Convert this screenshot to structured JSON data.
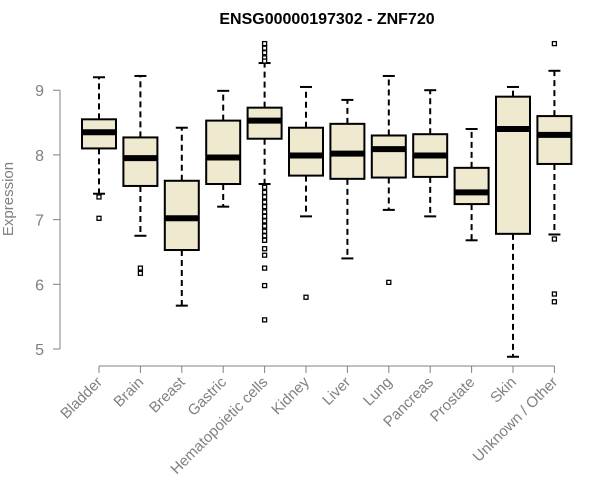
{
  "chart_data": {
    "type": "box",
    "title": "ENSG00000197302 - ZNF720",
    "ylabel": "Expression",
    "xlabel": "",
    "ylim": [
      4.8,
      9.8
    ],
    "yticks": [
      5,
      6,
      7,
      8,
      9
    ],
    "box_fill": "#efe9cf",
    "line_color": "#000000",
    "axis_color": "#808080",
    "categories": [
      "Bladder",
      "Brain",
      "Breast",
      "Gastric",
      "Hematopoietic cells",
      "Kidney",
      "Liver",
      "Lung",
      "Pancreas",
      "Prostate",
      "Skin",
      "Unknown / Other"
    ],
    "boxes": [
      {
        "category": "Bladder",
        "whisker_low": 7.4,
        "q1": 8.1,
        "median": 8.35,
        "q3": 8.55,
        "whisker_high": 9.2,
        "outliers": [
          7.35,
          7.02
        ]
      },
      {
        "category": "Brain",
        "whisker_low": 6.75,
        "q1": 7.52,
        "median": 7.95,
        "q3": 8.27,
        "whisker_high": 9.22,
        "outliers": [
          6.25,
          6.17
        ]
      },
      {
        "category": "Breast",
        "whisker_low": 5.67,
        "q1": 6.53,
        "median": 7.02,
        "q3": 7.6,
        "whisker_high": 8.42,
        "outliers": []
      },
      {
        "category": "Gastric",
        "whisker_low": 7.2,
        "q1": 7.55,
        "median": 7.96,
        "q3": 8.53,
        "whisker_high": 8.99,
        "outliers": []
      },
      {
        "category": "Hematopoietic cells",
        "whisker_low": 7.55,
        "q1": 8.25,
        "median": 8.53,
        "q3": 8.73,
        "whisker_high": 9.42,
        "outliers": [
          9.72,
          9.65,
          9.58,
          9.5,
          9.45,
          7.5,
          7.42,
          7.35,
          7.27,
          7.2,
          7.12,
          7.05,
          6.98,
          6.9,
          6.82,
          6.75,
          6.68,
          6.55,
          6.45,
          6.25,
          5.98,
          5.45
        ]
      },
      {
        "category": "Kidney",
        "whisker_low": 7.05,
        "q1": 7.68,
        "median": 7.99,
        "q3": 8.42,
        "whisker_high": 9.05,
        "outliers": [
          5.8
        ]
      },
      {
        "category": "Liver",
        "whisker_low": 6.4,
        "q1": 7.63,
        "median": 8.02,
        "q3": 8.48,
        "whisker_high": 8.85,
        "outliers": []
      },
      {
        "category": "Lung",
        "whisker_low": 7.15,
        "q1": 7.65,
        "median": 8.09,
        "q3": 8.3,
        "whisker_high": 9.22,
        "outliers": [
          6.03
        ]
      },
      {
        "category": "Pancreas",
        "whisker_low": 7.05,
        "q1": 7.66,
        "median": 7.99,
        "q3": 8.32,
        "whisker_high": 9.0,
        "outliers": []
      },
      {
        "category": "Prostate",
        "whisker_low": 6.68,
        "q1": 7.24,
        "median": 7.42,
        "q3": 7.8,
        "whisker_high": 8.4,
        "outliers": []
      },
      {
        "category": "Skin",
        "whisker_low": 4.88,
        "q1": 6.78,
        "median": 8.4,
        "q3": 8.9,
        "whisker_high": 9.05,
        "outliers": []
      },
      {
        "category": "Unknown / Other",
        "whisker_low": 6.77,
        "q1": 7.86,
        "median": 8.31,
        "q3": 8.6,
        "whisker_high": 9.3,
        "outliers": [
          9.72,
          6.7,
          5.85,
          5.73
        ]
      }
    ]
  }
}
